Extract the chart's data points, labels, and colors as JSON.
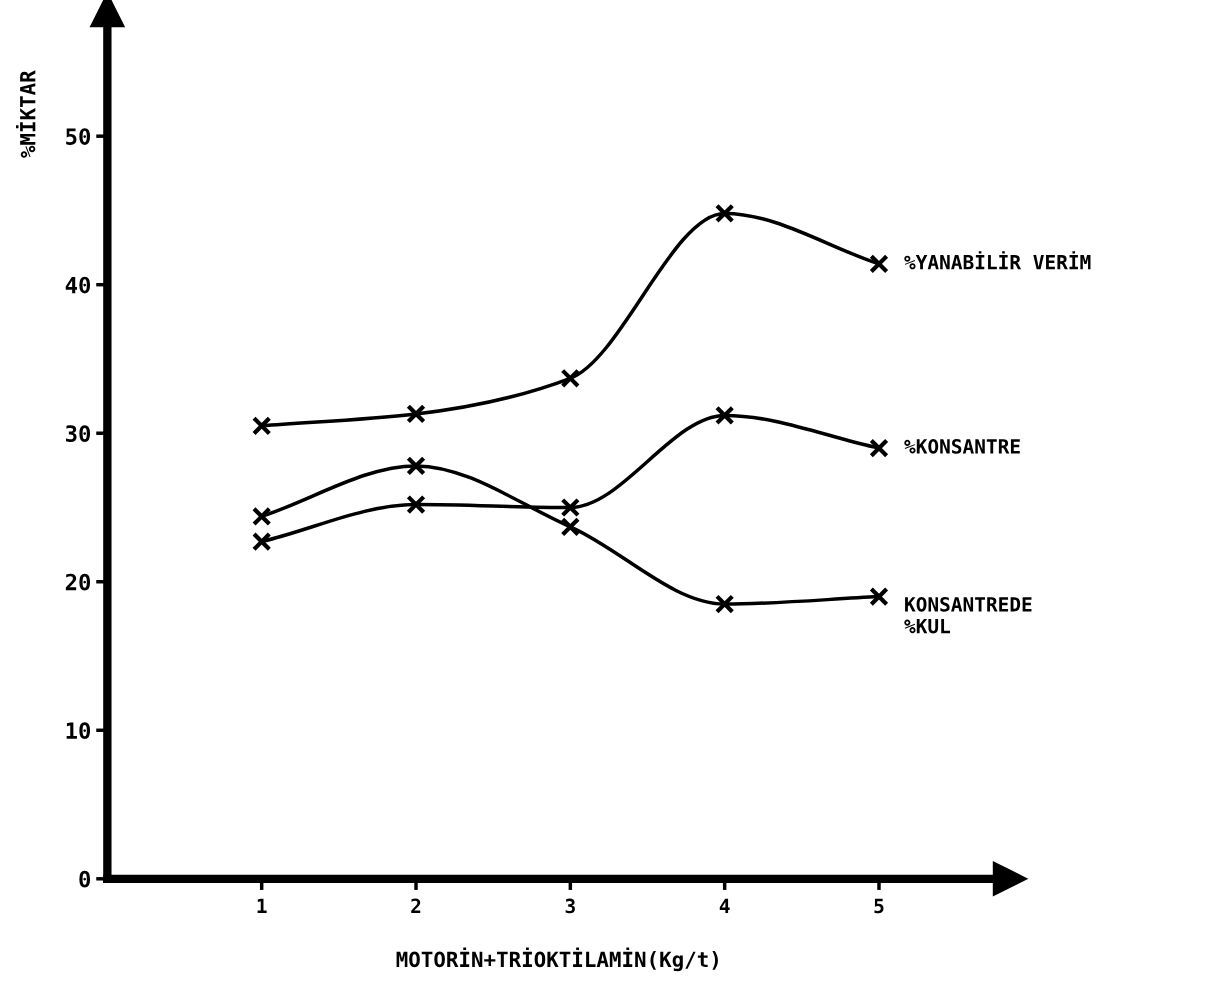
{
  "chart_data": {
    "type": "line",
    "xlabel": "MOTORİN+TRİOKTİLAMİN(Kg/t)",
    "ylabel": "%MİKTAR",
    "x": [
      1,
      2,
      3,
      4,
      5
    ],
    "series": [
      {
        "name": "%YANABİLİR VERİM",
        "color": "#000000",
        "values": [
          30.5,
          31.3,
          33.7,
          44.8,
          41.4
        ]
      },
      {
        "name": "%KONSANTRE",
        "color": "#000000",
        "values": [
          22.7,
          25.2,
          25.0,
          31.2,
          29.0
        ]
      },
      {
        "name": "KONSANTREDE\n%KUL",
        "color": "#000000",
        "values": [
          24.4,
          27.8,
          23.7,
          18.5,
          19.0
        ]
      }
    ],
    "xlim": [
      0,
      5.85
    ],
    "ylim": [
      0,
      58.5
    ],
    "xticks": [
      1,
      2,
      3,
      4,
      5
    ],
    "yticks": [
      0,
      10,
      20,
      30,
      40,
      50
    ],
    "grid": false,
    "legend": false,
    "marker": "cross",
    "line_style": "solid"
  }
}
